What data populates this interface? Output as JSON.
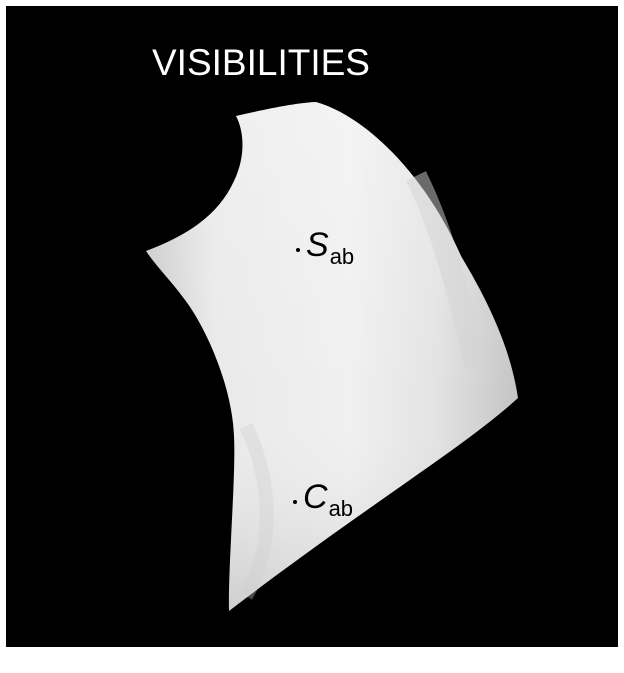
{
  "title": "VISIBILITIES",
  "points": [
    {
      "id": "S",
      "symbol": "S",
      "subscript": "ab"
    },
    {
      "id": "C",
      "symbol": "C",
      "subscript": "ab"
    }
  ],
  "colors": {
    "background": "#000000",
    "surface": "#e2e2e2",
    "title": "#ffffff",
    "labels": "#000000"
  }
}
